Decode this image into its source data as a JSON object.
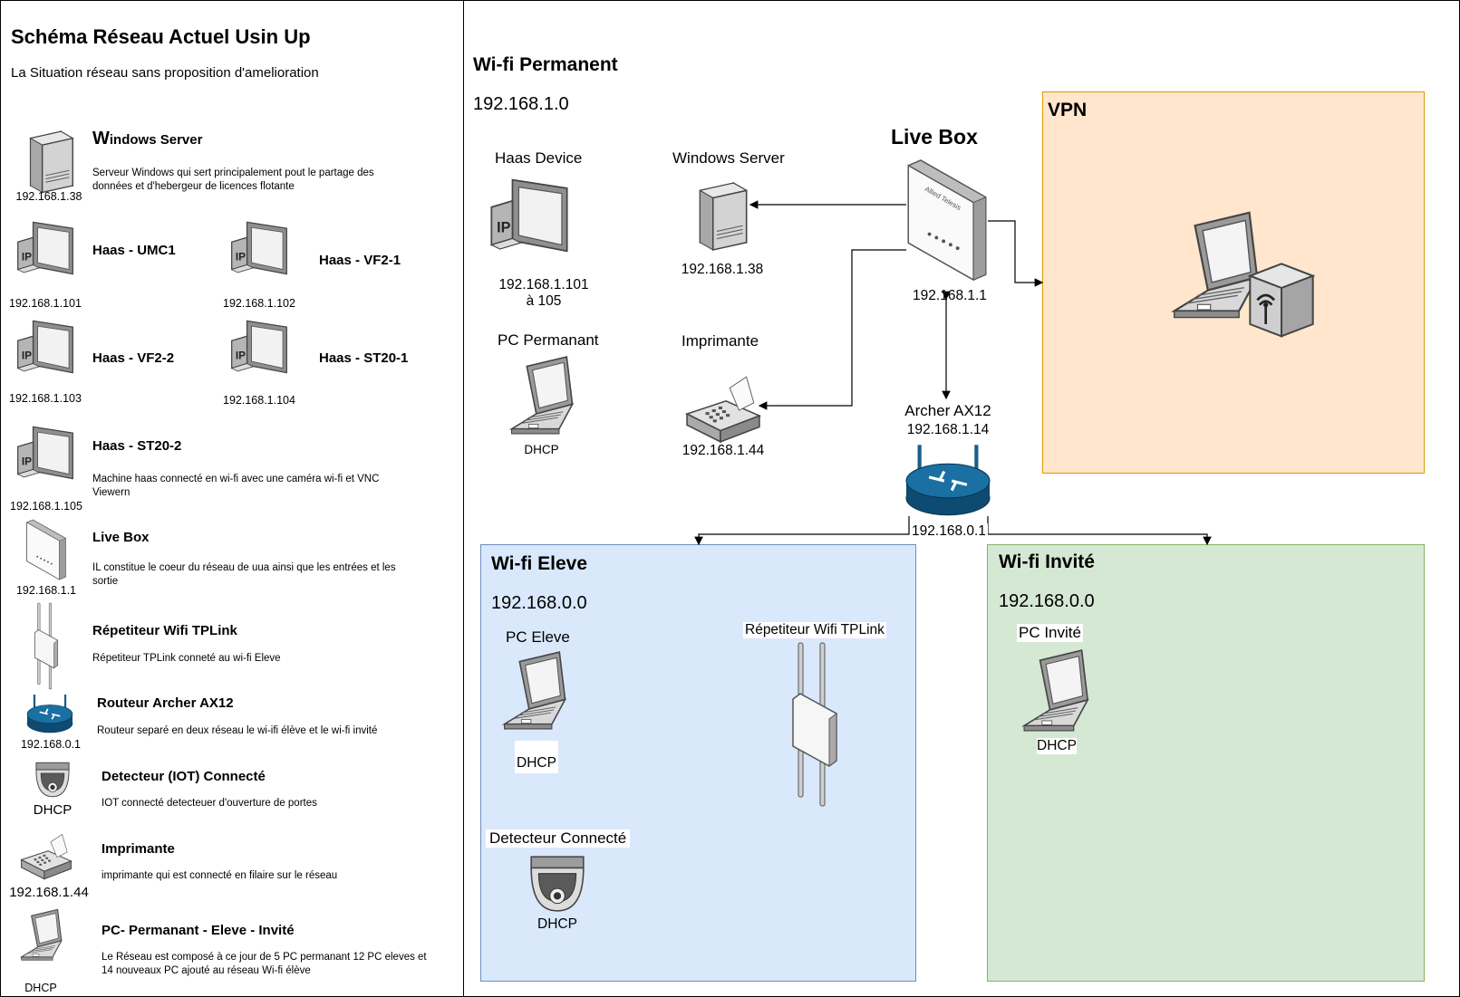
{
  "title": "Schéma Réseau Actuel Usin Up",
  "subtitle": "La Situation réseau sans proposition d'amelioration",
  "legend": {
    "windows_server": {
      "title_w": "W",
      "title_rest": "indows Server",
      "desc": "Serveur Windows qui sert principalement pout le partage des données et d'hebergeur de licences flotante",
      "ip": "192.168.1.38",
      "icon": "server-icon"
    },
    "umc1": {
      "title": "Haas - UMC1",
      "ip": "192.168.1.101",
      "icon": "haas-device-icon"
    },
    "vf21": {
      "title": "Haas - VF2-1",
      "ip": "192.168.1.102",
      "icon": "haas-device-icon"
    },
    "vf22": {
      "title": "Haas - VF2-2",
      "ip": "192.168.1.103",
      "icon": "haas-device-icon"
    },
    "st201": {
      "title": "Haas - ST20-1",
      "ip": "192.168.1.104",
      "icon": "haas-device-icon"
    },
    "st202": {
      "title": "Haas - ST20-2",
      "desc": "Machine haas connecté en wi-fi avec une caméra wi-fi et VNC Viewern",
      "ip": "192.168.1.105",
      "icon": "haas-device-icon"
    },
    "livebox": {
      "title": "Live Box",
      "desc": "IL constitue le coeur du réseau de uua ainsi que les entrées et les sortie",
      "ip": "192.168.1.1",
      "icon": "livebox-icon"
    },
    "repeater": {
      "title": "Répetiteur Wifi TPLink",
      "desc": "Répetiteur TPLink conneté au wi-fi Eleve",
      "icon": "repeater-icon"
    },
    "router": {
      "title": "Routeur Archer AX12",
      "desc": "Routeur separé en deux réseau le wi-ifi élève et le wi-fi invité",
      "ip": "192.168.0.1",
      "icon": "router-icon"
    },
    "detector": {
      "title": "Detecteur (IOT)  Connecté",
      "desc": "IOT connecté detecteuer d'ouverture de portes",
      "ip": "DHCP",
      "icon": "camera-icon"
    },
    "printer": {
      "title": "Imprimante",
      "desc": "imprimante qui est connecté en filaire sur le réseau",
      "ip": "192.168.1.44",
      "icon": "printer-icon"
    },
    "pc": {
      "title": "PC- Permanant - Eleve - Invité",
      "desc": "Le Réseau est composé à ce jour de 5 PC permanant 12 PC eleves et 14 nouveaux PC ajouté au réseau Wi-fi  élève",
      "ip": "DHCP",
      "icon": "laptop-icon"
    }
  },
  "wifi_permanent": {
    "title": "Wi-fi Permanent",
    "network": "192.168.1.0",
    "haas_device": {
      "label": "Haas Device",
      "ip_line1": "192.168.1.101",
      "ip_line2": "à 105"
    },
    "windows_server": {
      "label": "Windows Server",
      "ip": "192.168.1.38"
    },
    "pc_permanent": {
      "label": "PC Permanant",
      "ip": "DHCP"
    },
    "printer": {
      "label": "Imprimante",
      "ip": "192.168.1.44"
    },
    "livebox": {
      "label": "Live Box",
      "ip": "192.168.1.1",
      "brand": "Allied Telesis"
    },
    "archer": {
      "label": "Archer AX12",
      "ip": "192.168.1.14",
      "ip_lan": "192.168.0.1"
    }
  },
  "vpn": {
    "title": "VPN",
    "color": "#ffe6cc",
    "border": "#d79b00"
  },
  "wifi_eleve": {
    "title": "Wi-fi Eleve",
    "network": "192.168.0.0",
    "pc": {
      "label": "PC Eleve",
      "ip": "DHCP"
    },
    "repeater": {
      "label": "Répetiteur Wifi TPLink"
    },
    "detector": {
      "label": "Detecteur Connecté",
      "ip": "DHCP"
    },
    "color": "#dae8fc",
    "border": "#6c8ebf"
  },
  "wifi_invite": {
    "title": "Wi-fi Invité",
    "network": "192.168.0.0",
    "pc": {
      "label": "PC Invité",
      "ip": "DHCP"
    },
    "color": "#d5e8d4",
    "border": "#82b366"
  }
}
